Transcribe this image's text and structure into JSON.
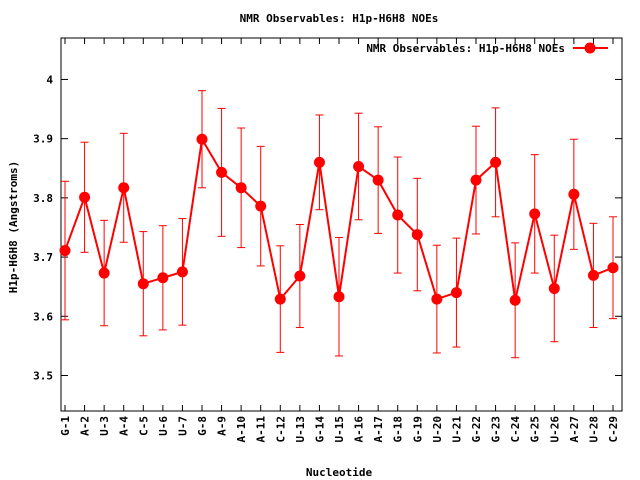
{
  "chart_data": {
    "type": "line",
    "title": "NMR Observables: H1p-H6H8 NOEs",
    "xlabel": "Nucleotide",
    "ylabel": "H1p-H6H8 (Angstroms)",
    "ylim": [
      3.44,
      4.07
    ],
    "yticks": [
      3.5,
      3.6,
      3.7,
      3.8,
      3.9,
      4
    ],
    "ytick_labels": [
      "3.5",
      "3.6",
      "3.7",
      "3.8",
      "3.9",
      "4"
    ],
    "grid": false,
    "legend_position": "top-right",
    "color": "#ff0000",
    "categories": [
      "G-1",
      "A-2",
      "U-3",
      "A-4",
      "C-5",
      "U-6",
      "U-7",
      "G-8",
      "A-9",
      "A-10",
      "A-11",
      "C-12",
      "U-13",
      "G-14",
      "U-15",
      "A-16",
      "A-17",
      "G-18",
      "G-19",
      "U-20",
      "U-21",
      "G-22",
      "G-23",
      "C-24",
      "G-25",
      "U-26",
      "A-27",
      "U-28",
      "C-29"
    ],
    "series": [
      {
        "name": "NMR Observables: H1p-H6H8 NOEs",
        "values": [
          3.711,
          3.801,
          3.673,
          3.817,
          3.655,
          3.665,
          3.675,
          3.899,
          3.843,
          3.817,
          3.786,
          3.629,
          3.668,
          3.86,
          3.633,
          3.853,
          3.83,
          3.771,
          3.738,
          3.629,
          3.64,
          3.83,
          3.86,
          3.627,
          3.773,
          3.647,
          3.806,
          3.669,
          3.682
        ],
        "errors": [
          0.117,
          0.093,
          0.089,
          0.092,
          0.088,
          0.088,
          0.09,
          0.082,
          0.108,
          0.101,
          0.101,
          0.09,
          0.087,
          0.08,
          0.1,
          0.09,
          0.09,
          0.098,
          0.095,
          0.091,
          0.092,
          0.091,
          0.092,
          0.097,
          0.1,
          0.09,
          0.093,
          0.088,
          0.086
        ]
      }
    ]
  }
}
